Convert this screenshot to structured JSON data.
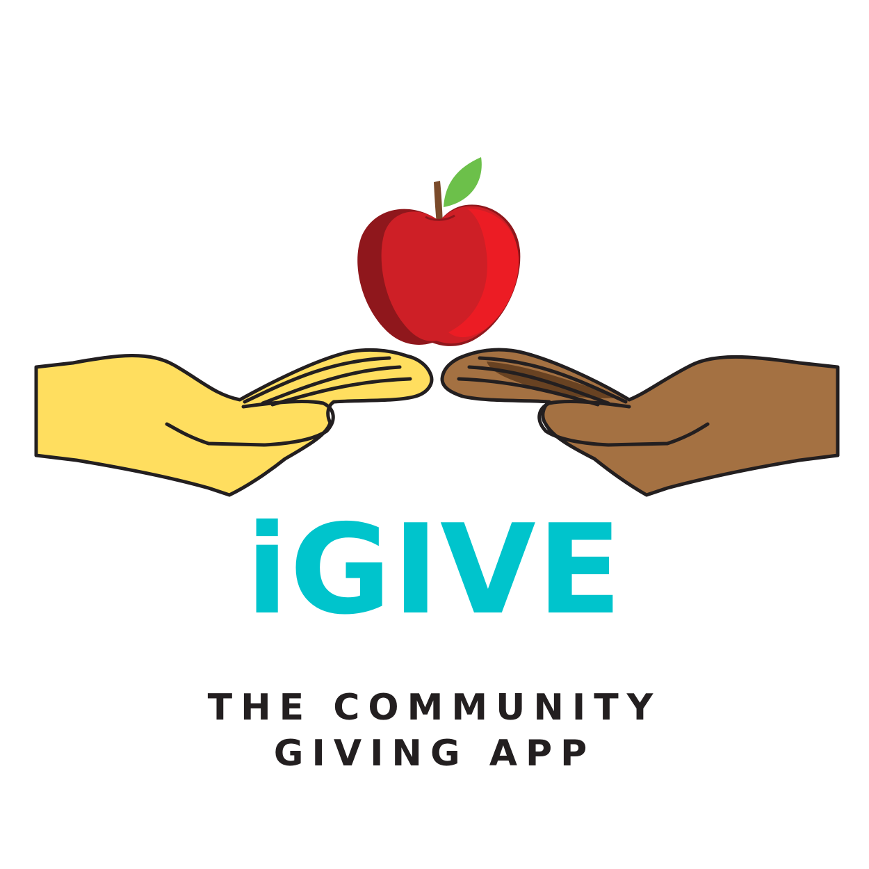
{
  "brand": {
    "name": "iGIVE",
    "tagline_line1": "THE COMMUNITY",
    "tagline_line2": "GIVING APP"
  },
  "colors": {
    "brand_teal": "#00C4CC",
    "tagline": "#231F20",
    "apple_red": "#CE1F26",
    "apple_shadow": "#8F171C",
    "apple_highlight": "#EC1C24",
    "leaf_green": "#6CC04A",
    "stem_brown": "#7A4A2A",
    "hand_yellow": "#FFDE5F",
    "hand_brown": "#A47142",
    "hand_brown_dark": "#5E3A1C",
    "outline": "#231F20",
    "background": "#FFFFFF"
  },
  "icons": {
    "apple": "apple-icon",
    "left_hand": "open-hand-yellow-icon",
    "right_hand": "open-hand-brown-icon"
  }
}
